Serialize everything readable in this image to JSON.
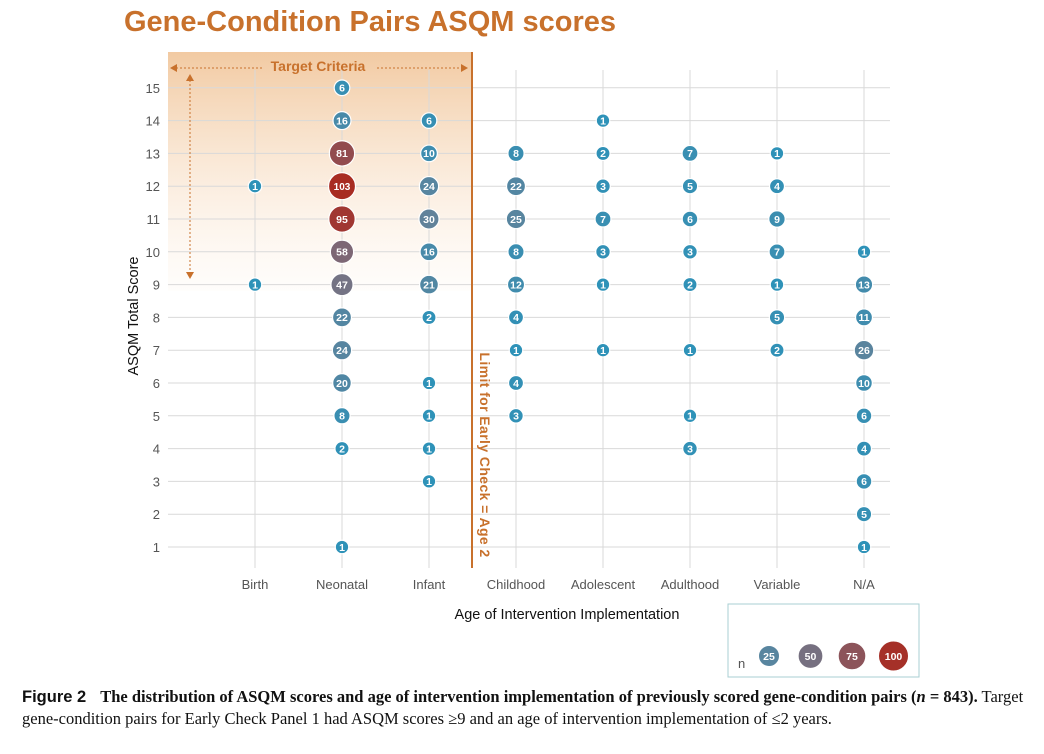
{
  "chart_data": {
    "type": "scatter",
    "subtype": "bubble",
    "title": "Gene-Condition Pairs ASQM scores",
    "xlabel": "Age of Intervention Implementation",
    "ylabel": "ASQM Total Score",
    "x_categories": [
      "Birth",
      "Neonatal",
      "Infant",
      "Childhood",
      "Adolescent",
      "Adulthood",
      "Variable",
      "N/A"
    ],
    "y_ticks": [
      1,
      2,
      3,
      4,
      5,
      6,
      7,
      8,
      9,
      10,
      11,
      12,
      13,
      14,
      15
    ],
    "ylim": [
      1,
      15
    ],
    "grid": true,
    "points": [
      {
        "x": "Birth",
        "y": 12,
        "n": 1
      },
      {
        "x": "Birth",
        "y": 9,
        "n": 1
      },
      {
        "x": "Neonatal",
        "y": 15,
        "n": 6
      },
      {
        "x": "Neonatal",
        "y": 14,
        "n": 16
      },
      {
        "x": "Neonatal",
        "y": 13,
        "n": 81
      },
      {
        "x": "Neonatal",
        "y": 12,
        "n": 103
      },
      {
        "x": "Neonatal",
        "y": 11,
        "n": 95
      },
      {
        "x": "Neonatal",
        "y": 10,
        "n": 58
      },
      {
        "x": "Neonatal",
        "y": 9,
        "n": 47
      },
      {
        "x": "Neonatal",
        "y": 8,
        "n": 22
      },
      {
        "x": "Neonatal",
        "y": 7,
        "n": 24
      },
      {
        "x": "Neonatal",
        "y": 6,
        "n": 20
      },
      {
        "x": "Neonatal",
        "y": 5,
        "n": 8
      },
      {
        "x": "Neonatal",
        "y": 4,
        "n": 2
      },
      {
        "x": "Neonatal",
        "y": 1,
        "n": 1
      },
      {
        "x": "Infant",
        "y": 14,
        "n": 6
      },
      {
        "x": "Infant",
        "y": 13,
        "n": 10
      },
      {
        "x": "Infant",
        "y": 12,
        "n": 24
      },
      {
        "x": "Infant",
        "y": 11,
        "n": 30
      },
      {
        "x": "Infant",
        "y": 10,
        "n": 16
      },
      {
        "x": "Infant",
        "y": 9,
        "n": 21
      },
      {
        "x": "Infant",
        "y": 8,
        "n": 2
      },
      {
        "x": "Infant",
        "y": 6,
        "n": 1
      },
      {
        "x": "Infant",
        "y": 5,
        "n": 1
      },
      {
        "x": "Infant",
        "y": 4,
        "n": 1
      },
      {
        "x": "Infant",
        "y": 3,
        "n": 1
      },
      {
        "x": "Childhood",
        "y": 13,
        "n": 8
      },
      {
        "x": "Childhood",
        "y": 12,
        "n": 22
      },
      {
        "x": "Childhood",
        "y": 11,
        "n": 25
      },
      {
        "x": "Childhood",
        "y": 10,
        "n": 8
      },
      {
        "x": "Childhood",
        "y": 9,
        "n": 12
      },
      {
        "x": "Childhood",
        "y": 8,
        "n": 4
      },
      {
        "x": "Childhood",
        "y": 7,
        "n": 1
      },
      {
        "x": "Childhood",
        "y": 6,
        "n": 4
      },
      {
        "x": "Childhood",
        "y": 5,
        "n": 3
      },
      {
        "x": "Adolescent",
        "y": 14,
        "n": 1
      },
      {
        "x": "Adolescent",
        "y": 13,
        "n": 2
      },
      {
        "x": "Adolescent",
        "y": 12,
        "n": 3
      },
      {
        "x": "Adolescent",
        "y": 11,
        "n": 7
      },
      {
        "x": "Adolescent",
        "y": 10,
        "n": 3
      },
      {
        "x": "Adolescent",
        "y": 9,
        "n": 1
      },
      {
        "x": "Adolescent",
        "y": 7,
        "n": 1
      },
      {
        "x": "Adulthood",
        "y": 13,
        "n": 7
      },
      {
        "x": "Adulthood",
        "y": 12,
        "n": 5
      },
      {
        "x": "Adulthood",
        "y": 11,
        "n": 6
      },
      {
        "x": "Adulthood",
        "y": 10,
        "n": 3
      },
      {
        "x": "Adulthood",
        "y": 9,
        "n": 2
      },
      {
        "x": "Adulthood",
        "y": 7,
        "n": 1
      },
      {
        "x": "Adulthood",
        "y": 5,
        "n": 1
      },
      {
        "x": "Adulthood",
        "y": 4,
        "n": 3
      },
      {
        "x": "Variable",
        "y": 13,
        "n": 1
      },
      {
        "x": "Variable",
        "y": 12,
        "n": 4
      },
      {
        "x": "Variable",
        "y": 11,
        "n": 9
      },
      {
        "x": "Variable",
        "y": 10,
        "n": 7
      },
      {
        "x": "Variable",
        "y": 9,
        "n": 1
      },
      {
        "x": "Variable",
        "y": 8,
        "n": 5
      },
      {
        "x": "Variable",
        "y": 7,
        "n": 2
      },
      {
        "x": "N/A",
        "y": 10,
        "n": 1
      },
      {
        "x": "N/A",
        "y": 9,
        "n": 13
      },
      {
        "x": "N/A",
        "y": 8,
        "n": 11
      },
      {
        "x": "N/A",
        "y": 7,
        "n": 26
      },
      {
        "x": "N/A",
        "y": 6,
        "n": 10
      },
      {
        "x": "N/A",
        "y": 5,
        "n": 6
      },
      {
        "x": "N/A",
        "y": 4,
        "n": 4
      },
      {
        "x": "N/A",
        "y": 3,
        "n": 6
      },
      {
        "x": "N/A",
        "y": 2,
        "n": 5
      },
      {
        "x": "N/A",
        "y": 1,
        "n": 1
      }
    ],
    "size_legend": {
      "label": "n",
      "values": [
        25,
        50,
        75,
        100
      ]
    },
    "color_scale": [
      "#2e92b8",
      "#6a7f95",
      "#865c66",
      "#a82c22"
    ],
    "annotations": {
      "target_criteria": "Target Criteria",
      "limit_line_label": "Limit for Early Check = Age 2",
      "target_region": {
        "x_from": "Birth",
        "x_to": "Infant",
        "y_min": 9,
        "y_max": 15
      }
    },
    "accent_color": "#c8712c"
  },
  "caption": {
    "figure_label": "Figure 2",
    "heading_part1": "The distribution of ASQM scores and age of intervention implementation of previously scored gene-condition pairs (",
    "heading_n_var": "n",
    "heading_part2": " = 843).",
    "body": " Target gene-condition pairs for Early Check Panel 1 had ASQM scores ≥9 and an age of intervention implementation of ≤2 years."
  }
}
